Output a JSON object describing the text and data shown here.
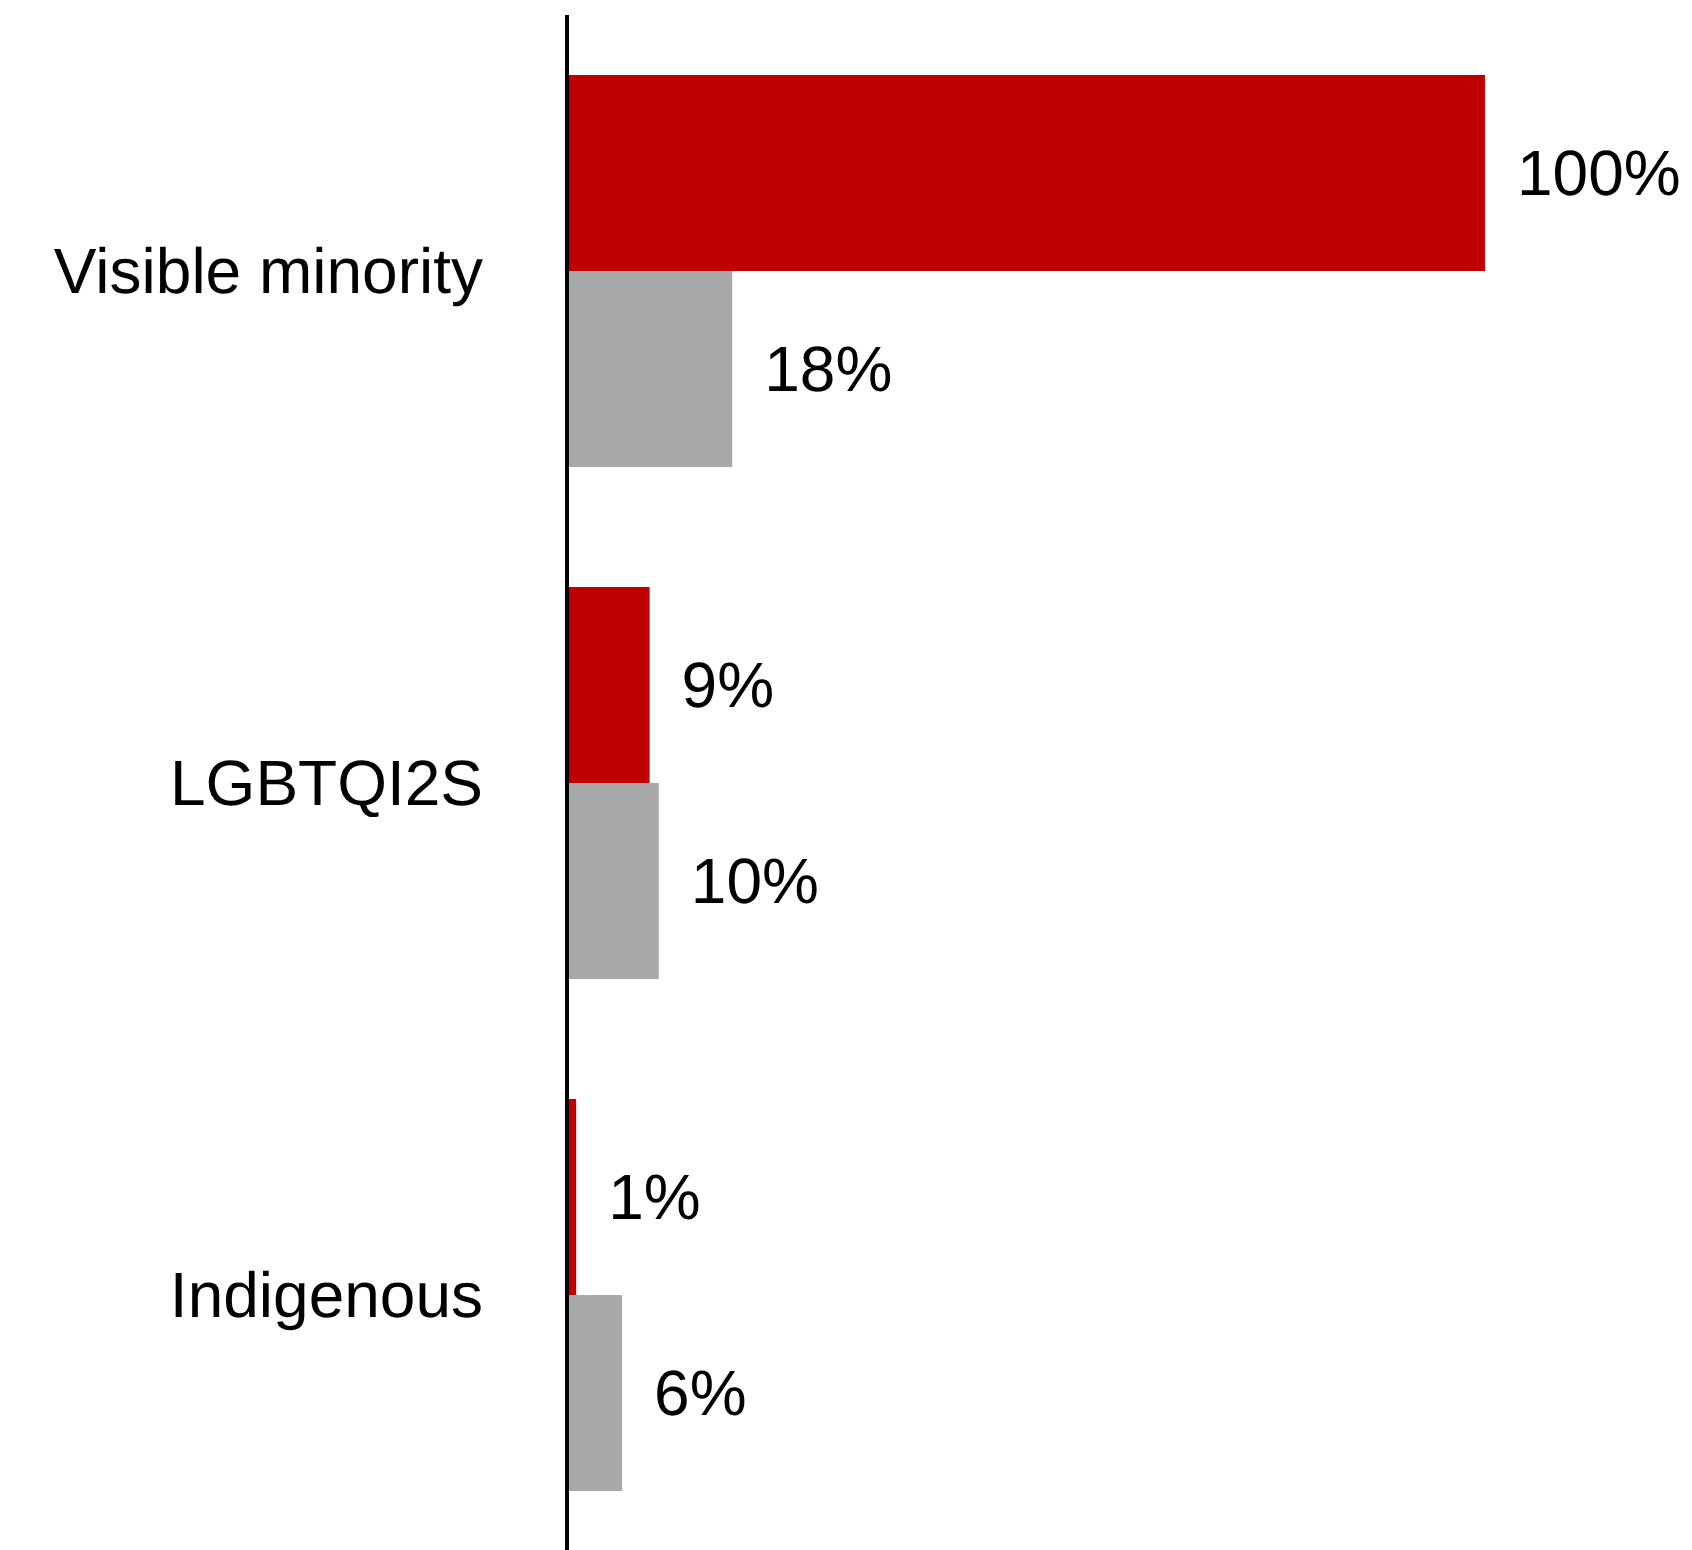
{
  "chart_data": {
    "type": "bar",
    "orientation": "horizontal",
    "categories": [
      "Visible minority",
      "LGBTQI2S",
      "Indigenous"
    ],
    "series": [
      {
        "color": "#c00000",
        "values": [
          100,
          9,
          1
        ],
        "value_labels": [
          "100%",
          "9%",
          "1%"
        ]
      },
      {
        "color": "#a9a9a9",
        "values": [
          18,
          10,
          6
        ],
        "value_labels": [
          "18%",
          "10%",
          "6%"
        ]
      }
    ],
    "tick_labels": "y"
  }
}
